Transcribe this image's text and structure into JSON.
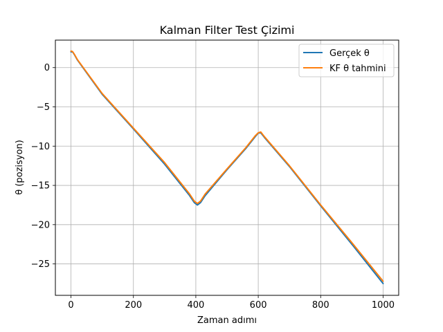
{
  "chart_data": {
    "type": "line",
    "title": "Kalman Filter Test Çizimi",
    "xlabel": "Zaman adımı",
    "ylabel": "θ (pozisyon)",
    "xlim": [
      -50,
      1050
    ],
    "ylim": [
      -29,
      3.5
    ],
    "xticks": [
      0,
      200,
      400,
      600,
      800,
      1000
    ],
    "yticks": [
      0,
      -5,
      -10,
      -15,
      -20,
      -25
    ],
    "grid": true,
    "legend_position": "top-right",
    "series": [
      {
        "name": "Gerçek θ",
        "color": "#1f77b4",
        "points": [
          [
            0,
            2.0
          ],
          [
            5,
            2.0
          ],
          [
            10,
            1.7
          ],
          [
            20,
            1.0
          ],
          [
            100,
            -3.4
          ],
          [
            200,
            -7.8
          ],
          [
            300,
            -12.3
          ],
          [
            380,
            -16.3
          ],
          [
            395,
            -17.2
          ],
          [
            405,
            -17.5
          ],
          [
            415,
            -17.2
          ],
          [
            430,
            -16.3
          ],
          [
            500,
            -13.0
          ],
          [
            560,
            -10.3
          ],
          [
            590,
            -8.8
          ],
          [
            600,
            -8.35
          ],
          [
            608,
            -8.3
          ],
          [
            620,
            -8.9
          ],
          [
            700,
            -12.6
          ],
          [
            800,
            -17.6
          ],
          [
            900,
            -22.5
          ],
          [
            1000,
            -27.5
          ]
        ]
      },
      {
        "name": "KF θ tahmini",
        "color": "#ff7f0e",
        "points": [
          [
            0,
            2.1
          ],
          [
            5,
            2.05
          ],
          [
            10,
            1.75
          ],
          [
            20,
            1.05
          ],
          [
            100,
            -3.3
          ],
          [
            200,
            -7.7
          ],
          [
            300,
            -12.1
          ],
          [
            380,
            -16.1
          ],
          [
            395,
            -17.0
          ],
          [
            405,
            -17.3
          ],
          [
            415,
            -17.0
          ],
          [
            430,
            -16.1
          ],
          [
            500,
            -12.9
          ],
          [
            560,
            -10.2
          ],
          [
            590,
            -8.7
          ],
          [
            600,
            -8.3
          ],
          [
            608,
            -8.2
          ],
          [
            620,
            -8.8
          ],
          [
            700,
            -12.5
          ],
          [
            800,
            -17.5
          ],
          [
            900,
            -22.3
          ],
          [
            1000,
            -27.2
          ]
        ]
      }
    ]
  }
}
